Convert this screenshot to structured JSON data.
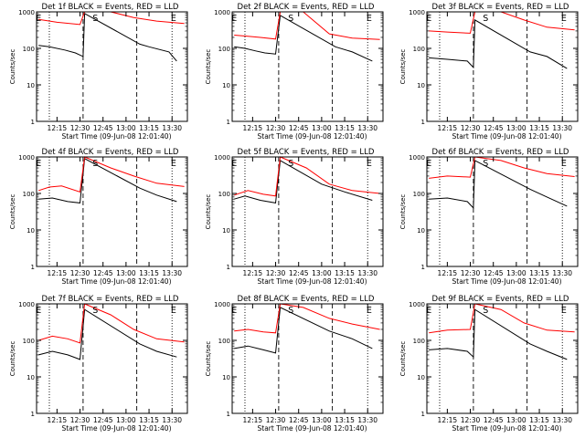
{
  "figure": {
    "background": "#ffffff",
    "axis_color": "#000000",
    "events_color": "#000000",
    "lld_color": "#ff0000"
  },
  "chart_data": [
    {
      "type": "line",
      "title": "Det 1f BLACK = Events, RED = LLD",
      "xlabel": "Start Time (09-Jun-08 12:01:40)",
      "ylabel": "Counts/sec",
      "yscale": "log",
      "ylim": [
        1,
        1000
      ],
      "yticks": [
        "1",
        "10",
        "100",
        "1000"
      ],
      "xticks": [
        "12:15",
        "12:30",
        "12:45",
        "13:00",
        "13:15",
        "13:30"
      ],
      "markers": [
        "E",
        "S",
        "E"
      ],
      "series": [
        {
          "name": "Events",
          "color": "#000000",
          "values": [
            {
              "x": "12:03",
              "y": 120
            },
            {
              "x": "12:10",
              "y": 110
            },
            {
              "x": "12:20",
              "y": 90
            },
            {
              "x": "12:27",
              "y": 75
            },
            {
              "x": "12:32",
              "y": 60
            },
            {
              "x": "12:33",
              "y": 900
            },
            {
              "x": "13:09",
              "y": 130
            },
            {
              "x": "13:15",
              "y": 110
            },
            {
              "x": "13:28",
              "y": 80
            },
            {
              "x": "13:33",
              "y": 45
            }
          ]
        },
        {
          "name": "LLD",
          "color": "#ff0000",
          "values": [
            {
              "x": "12:03",
              "y": 620
            },
            {
              "x": "12:15",
              "y": 520
            },
            {
              "x": "12:30",
              "y": 450
            },
            {
              "x": "12:33",
              "y": 1000
            },
            {
              "x": "12:50",
              "y": 1000
            },
            {
              "x": "13:05",
              "y": 700
            },
            {
              "x": "13:20",
              "y": 560
            },
            {
              "x": "13:38",
              "y": 480
            }
          ]
        }
      ]
    },
    {
      "type": "line",
      "title": "Det 2f BLACK = Events, RED = LLD",
      "xlabel": "Start Time (09-Jun-08 12:01:40)",
      "ylabel": "Counts/sec",
      "yscale": "log",
      "ylim": [
        1,
        1000
      ],
      "yticks": [
        "1",
        "10",
        "100",
        "1000"
      ],
      "xticks": [
        "12:15",
        "12:30",
        "12:45",
        "13:00",
        "13:15",
        "13:30"
      ],
      "markers": [
        "E",
        "S",
        "E"
      ],
      "series": [
        {
          "name": "Events",
          "color": "#000000",
          "values": [
            {
              "x": "12:03",
              "y": 110
            },
            {
              "x": "12:10",
              "y": 100
            },
            {
              "x": "12:17",
              "y": 85
            },
            {
              "x": "12:23",
              "y": 75
            },
            {
              "x": "12:30",
              "y": 70
            },
            {
              "x": "12:33",
              "y": 800
            },
            {
              "x": "13:09",
              "y": 110
            },
            {
              "x": "13:20",
              "y": 80
            },
            {
              "x": "13:33",
              "y": 45
            }
          ]
        },
        {
          "name": "LLD",
          "color": "#ff0000",
          "values": [
            {
              "x": "12:03",
              "y": 230
            },
            {
              "x": "12:12",
              "y": 215
            },
            {
              "x": "12:20",
              "y": 200
            },
            {
              "x": "12:30",
              "y": 180
            },
            {
              "x": "12:33",
              "y": 1000
            },
            {
              "x": "12:48",
              "y": 1000
            },
            {
              "x": "13:05",
              "y": 250
            },
            {
              "x": "13:20",
              "y": 190
            },
            {
              "x": "13:38",
              "y": 175
            }
          ]
        }
      ]
    },
    {
      "type": "line",
      "title": "Det 3f BLACK = Events, RED = LLD",
      "xlabel": "Start Time (09-Jun-08 12:01:40)",
      "ylabel": "Counts/sec",
      "yscale": "log",
      "ylim": [
        1,
        1000
      ],
      "yticks": [
        "1",
        "10",
        "100",
        "1000"
      ],
      "xticks": [
        "12:15",
        "12:30",
        "12:45",
        "13:00",
        "13:15",
        "13:30"
      ],
      "markers": [
        "E",
        "S",
        "E"
      ],
      "series": [
        {
          "name": "Events",
          "color": "#000000",
          "values": [
            {
              "x": "12:03",
              "y": 55
            },
            {
              "x": "12:15",
              "y": 50
            },
            {
              "x": "12:28",
              "y": 45
            },
            {
              "x": "12:32",
              "y": 30
            },
            {
              "x": "12:33",
              "y": 600
            },
            {
              "x": "13:09",
              "y": 80
            },
            {
              "x": "13:20",
              "y": 60
            },
            {
              "x": "13:33",
              "y": 28
            }
          ]
        },
        {
          "name": "LLD",
          "color": "#ff0000",
          "values": [
            {
              "x": "12:03",
              "y": 300
            },
            {
              "x": "12:15",
              "y": 280
            },
            {
              "x": "12:30",
              "y": 260
            },
            {
              "x": "12:33",
              "y": 1000
            },
            {
              "x": "12:50",
              "y": 1000
            },
            {
              "x": "13:05",
              "y": 600
            },
            {
              "x": "13:20",
              "y": 380
            },
            {
              "x": "13:38",
              "y": 320
            }
          ]
        }
      ]
    },
    {
      "type": "line",
      "title": "Det 4f BLACK = Events, RED = LLD",
      "xlabel": "Start Time (09-Jun-08 12:01:40)",
      "ylabel": "Counts/sec",
      "yscale": "log",
      "ylim": [
        1,
        1000
      ],
      "yticks": [
        "1",
        "10",
        "100",
        "1000"
      ],
      "xticks": [
        "12:15",
        "12:30",
        "12:45",
        "13:00",
        "13:15",
        "13:30"
      ],
      "markers": [
        "E",
        "S",
        "E"
      ],
      "series": [
        {
          "name": "Events",
          "color": "#000000",
          "values": [
            {
              "x": "12:03",
              "y": 70
            },
            {
              "x": "12:12",
              "y": 75
            },
            {
              "x": "12:22",
              "y": 60
            },
            {
              "x": "12:30",
              "y": 55
            },
            {
              "x": "12:33",
              "y": 900
            },
            {
              "x": "13:09",
              "y": 140
            },
            {
              "x": "13:20",
              "y": 90
            },
            {
              "x": "13:33",
              "y": 60
            }
          ]
        },
        {
          "name": "LLD",
          "color": "#ff0000",
          "values": [
            {
              "x": "12:03",
              "y": 120
            },
            {
              "x": "12:10",
              "y": 150
            },
            {
              "x": "12:18",
              "y": 160
            },
            {
              "x": "12:30",
              "y": 110
            },
            {
              "x": "12:33",
              "y": 1000
            },
            {
              "x": "12:50",
              "y": 500
            },
            {
              "x": "13:05",
              "y": 300
            },
            {
              "x": "13:20",
              "y": 190
            },
            {
              "x": "13:38",
              "y": 155
            }
          ]
        }
      ]
    },
    {
      "type": "line",
      "title": "Det 5f BLACK = Events, RED = LLD",
      "xlabel": "Start Time (09-Jun-08 12:01:40)",
      "ylabel": "Counts/sec",
      "yscale": "log",
      "ylim": [
        1,
        1000
      ],
      "yticks": [
        "1",
        "10",
        "100",
        "1000"
      ],
      "xticks": [
        "12:15",
        "12:30",
        "12:45",
        "13:00",
        "13:15",
        "13:30"
      ],
      "markers": [
        "E",
        "S",
        "E"
      ],
      "series": [
        {
          "name": "Events",
          "color": "#000000",
          "values": [
            {
              "x": "12:03",
              "y": 70
            },
            {
              "x": "12:10",
              "y": 85
            },
            {
              "x": "12:20",
              "y": 65
            },
            {
              "x": "12:30",
              "y": 55
            },
            {
              "x": "12:33",
              "y": 800
            },
            {
              "x": "13:00",
              "y": 180
            },
            {
              "x": "13:15",
              "y": 110
            },
            {
              "x": "13:33",
              "y": 65
            }
          ]
        },
        {
          "name": "LLD",
          "color": "#ff0000",
          "values": [
            {
              "x": "12:03",
              "y": 90
            },
            {
              "x": "12:12",
              "y": 120
            },
            {
              "x": "12:22",
              "y": 95
            },
            {
              "x": "12:30",
              "y": 85
            },
            {
              "x": "12:33",
              "y": 1000
            },
            {
              "x": "12:50",
              "y": 500
            },
            {
              "x": "13:05",
              "y": 180
            },
            {
              "x": "13:20",
              "y": 120
            },
            {
              "x": "13:38",
              "y": 100
            }
          ]
        }
      ]
    },
    {
      "type": "line",
      "title": "Det 6f BLACK = Events, RED = LLD",
      "xlabel": "Start Time (09-Jun-08 12:01:40)",
      "ylabel": "Counts/sec",
      "yscale": "log",
      "ylim": [
        1,
        1000
      ],
      "yticks": [
        "1",
        "10",
        "100",
        "1000"
      ],
      "xticks": [
        "12:15",
        "12:30",
        "12:45",
        "13:00",
        "13:15",
        "13:30"
      ],
      "markers": [
        "E",
        "S",
        "E"
      ],
      "series": [
        {
          "name": "Events",
          "color": "#000000",
          "values": [
            {
              "x": "12:03",
              "y": 70
            },
            {
              "x": "12:15",
              "y": 75
            },
            {
              "x": "12:28",
              "y": 60
            },
            {
              "x": "12:32",
              "y": 40
            },
            {
              "x": "12:33",
              "y": 800
            },
            {
              "x": "13:09",
              "y": 130
            },
            {
              "x": "13:20",
              "y": 80
            },
            {
              "x": "13:33",
              "y": 45
            }
          ]
        },
        {
          "name": "LLD",
          "color": "#ff0000",
          "values": [
            {
              "x": "12:03",
              "y": 260
            },
            {
              "x": "12:15",
              "y": 300
            },
            {
              "x": "12:30",
              "y": 280
            },
            {
              "x": "12:33",
              "y": 1000
            },
            {
              "x": "12:50",
              "y": 800
            },
            {
              "x": "13:05",
              "y": 500
            },
            {
              "x": "13:20",
              "y": 350
            },
            {
              "x": "13:38",
              "y": 290
            }
          ]
        }
      ]
    },
    {
      "type": "line",
      "title": "Det 7f BLACK = Events, RED = LLD",
      "xlabel": "Start Time (09-Jun-08 12:01:40)",
      "ylabel": "Counts/sec",
      "yscale": "log",
      "ylim": [
        1,
        1000
      ],
      "yticks": [
        "1",
        "10",
        "100",
        "1000"
      ],
      "xticks": [
        "12:15",
        "12:30",
        "12:45",
        "13:00",
        "13:15",
        "13:30"
      ],
      "markers": [
        "E",
        "S",
        "E"
      ],
      "series": [
        {
          "name": "Events",
          "color": "#000000",
          "values": [
            {
              "x": "12:03",
              "y": 40
            },
            {
              "x": "12:12",
              "y": 50
            },
            {
              "x": "12:22",
              "y": 40
            },
            {
              "x": "12:30",
              "y": 30
            },
            {
              "x": "12:33",
              "y": 700
            },
            {
              "x": "13:09",
              "y": 80
            },
            {
              "x": "13:20",
              "y": 50
            },
            {
              "x": "13:33",
              "y": 35
            }
          ]
        },
        {
          "name": "LLD",
          "color": "#ff0000",
          "values": [
            {
              "x": "12:03",
              "y": 100
            },
            {
              "x": "12:12",
              "y": 130
            },
            {
              "x": "12:22",
              "y": 110
            },
            {
              "x": "12:30",
              "y": 85
            },
            {
              "x": "12:33",
              "y": 1000
            },
            {
              "x": "12:50",
              "y": 500
            },
            {
              "x": "13:05",
              "y": 200
            },
            {
              "x": "13:20",
              "y": 110
            },
            {
              "x": "13:38",
              "y": 90
            }
          ]
        }
      ]
    },
    {
      "type": "line",
      "title": "Det 8f BLACK = Events, RED = LLD",
      "xlabel": "Start Time (09-Jun-08 12:01:40)",
      "ylabel": "Counts/sec",
      "yscale": "log",
      "ylim": [
        1,
        1000
      ],
      "yticks": [
        "1",
        "10",
        "100",
        "1000"
      ],
      "xticks": [
        "12:15",
        "12:30",
        "12:45",
        "13:00",
        "13:15",
        "13:30"
      ],
      "markers": [
        "E",
        "S",
        "E"
      ],
      "series": [
        {
          "name": "Events",
          "color": "#000000",
          "values": [
            {
              "x": "12:03",
              "y": 60
            },
            {
              "x": "12:12",
              "y": 70
            },
            {
              "x": "12:22",
              "y": 55
            },
            {
              "x": "12:30",
              "y": 45
            },
            {
              "x": "12:33",
              "y": 800
            },
            {
              "x": "13:05",
              "y": 180
            },
            {
              "x": "13:20",
              "y": 110
            },
            {
              "x": "13:33",
              "y": 60
            }
          ]
        },
        {
          "name": "LLD",
          "color": "#ff0000",
          "values": [
            {
              "x": "12:03",
              "y": 180
            },
            {
              "x": "12:12",
              "y": 200
            },
            {
              "x": "12:22",
              "y": 170
            },
            {
              "x": "12:30",
              "y": 160
            },
            {
              "x": "12:33",
              "y": 1000
            },
            {
              "x": "12:48",
              "y": 800
            },
            {
              "x": "13:05",
              "y": 400
            },
            {
              "x": "13:20",
              "y": 280
            },
            {
              "x": "13:38",
              "y": 200
            }
          ]
        }
      ]
    },
    {
      "type": "line",
      "title": "Det 9f BLACK = Events, RED = LLD",
      "xlabel": "Start Time (09-Jun-08 12:01:40)",
      "ylabel": "Counts/sec",
      "yscale": "log",
      "ylim": [
        1,
        1000
      ],
      "yticks": [
        "1",
        "10",
        "100",
        "1000"
      ],
      "xticks": [
        "12:15",
        "12:30",
        "12:45",
        "13:00",
        "13:15",
        "13:30"
      ],
      "markers": [
        "E",
        "S",
        "E"
      ],
      "series": [
        {
          "name": "Events",
          "color": "#000000",
          "values": [
            {
              "x": "12:03",
              "y": 55
            },
            {
              "x": "12:15",
              "y": 60
            },
            {
              "x": "12:28",
              "y": 50
            },
            {
              "x": "12:32",
              "y": 35
            },
            {
              "x": "12:33",
              "y": 700
            },
            {
              "x": "13:09",
              "y": 80
            },
            {
              "x": "13:20",
              "y": 50
            },
            {
              "x": "13:33",
              "y": 30
            }
          ]
        },
        {
          "name": "LLD",
          "color": "#ff0000",
          "values": [
            {
              "x": "12:03",
              "y": 160
            },
            {
              "x": "12:15",
              "y": 190
            },
            {
              "x": "12:30",
              "y": 200
            },
            {
              "x": "12:33",
              "y": 1000
            },
            {
              "x": "12:50",
              "y": 700
            },
            {
              "x": "13:05",
              "y": 300
            },
            {
              "x": "13:20",
              "y": 190
            },
            {
              "x": "13:38",
              "y": 170
            }
          ]
        }
      ]
    }
  ]
}
